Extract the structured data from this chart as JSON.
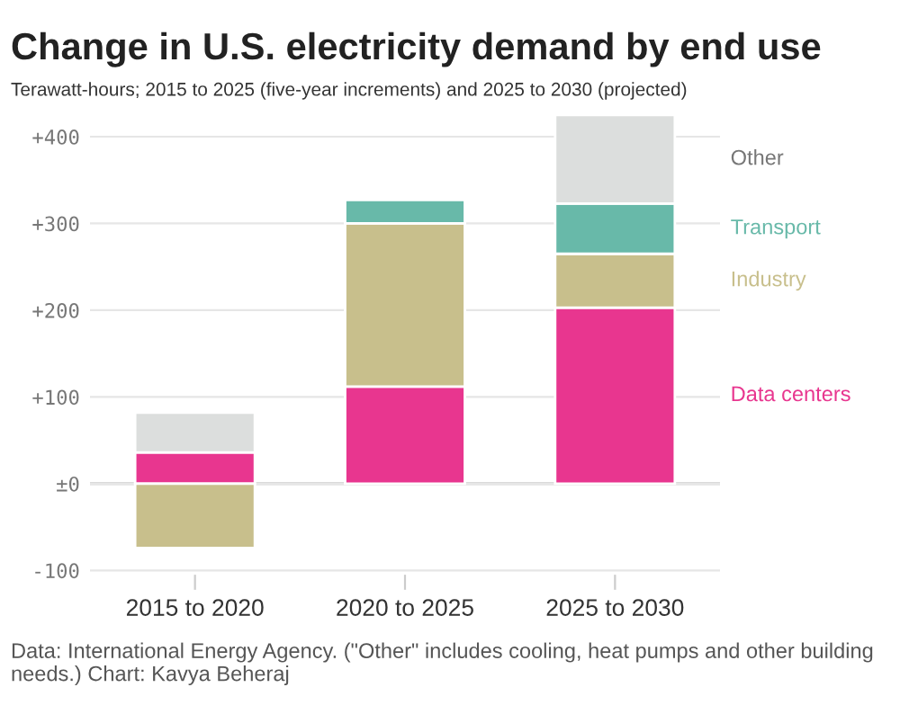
{
  "chart_data": {
    "type": "bar",
    "title": "Change in U.S. electricity demand by end use",
    "subtitle": "Terawatt-hours; 2015 to 2025 (five-year increments) and 2025 to 2030 (projected)",
    "categories": [
      "2015 to 2020",
      "2020 to 2025",
      "2025 to 2030"
    ],
    "series": [
      {
        "name": "Data centers",
        "color": "#e8368f",
        "values": [
          36,
          112,
          203
        ]
      },
      {
        "name": "Industry",
        "color": "#c8bf8c",
        "values": [
          -74,
          188,
          62
        ]
      },
      {
        "name": "Transport",
        "color": "#68b9a9",
        "values": [
          null,
          27,
          58
        ]
      },
      {
        "name": "Other",
        "color": "#dcdedd",
        "values": [
          46,
          null,
          102
        ]
      }
    ],
    "stacked": true,
    "ylim": [
      -105,
      430
    ],
    "yticks": [
      {
        "value": -100,
        "label": "-100"
      },
      {
        "value": 0,
        "label": "±0"
      },
      {
        "value": 100,
        "label": "+100"
      },
      {
        "value": 200,
        "label": "+200"
      },
      {
        "value": 300,
        "label": "+300"
      },
      {
        "value": 400,
        "label": "+400"
      }
    ],
    "grid": "y",
    "legend": false,
    "annotations": [
      "Data: International Energy Agency. (\"Other\" includes cooling, heat pumps and other building needs.) Chart: Kavya Beheraj"
    ]
  }
}
